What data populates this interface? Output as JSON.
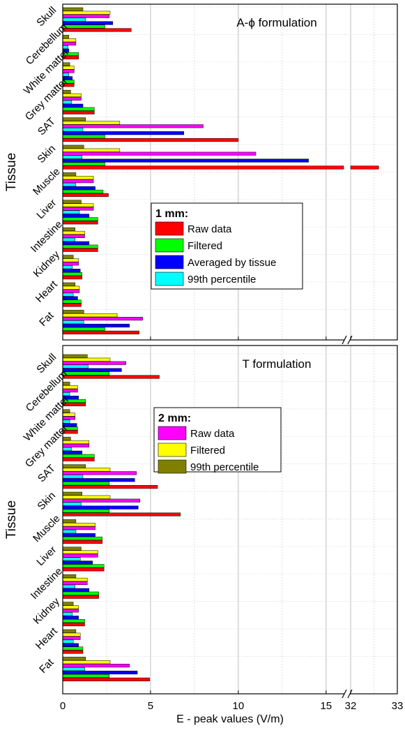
{
  "chart_data": [
    {
      "type": "bar",
      "orientation": "horizontal",
      "title": "A-ϕ formulation",
      "ylabel": "Tissue",
      "xlabel": "",
      "categories": [
        "Skull",
        "Cerebellum",
        "White matter",
        "Grey matter",
        "SAT",
        "Skin",
        "Muscle",
        "Liver",
        "Intestine",
        "Kidney",
        "Heart",
        "Fat"
      ],
      "x_axis": {
        "segments": [
          [
            0,
            16
          ],
          [
            32,
            33
          ]
        ],
        "ticks": [
          0,
          5,
          10,
          15,
          32,
          33
        ],
        "tick_labels": [
          "0",
          "5",
          "10",
          "15",
          "32",
          "33"
        ],
        "broken": true,
        "tick_labels_shown": false
      },
      "grid": true,
      "legend_title": "1 mm:",
      "legend_position": "center",
      "legend": [
        "Raw data",
        "Filtered",
        "Averaged by tissue",
        "99th percentile"
      ],
      "series": [
        {
          "name": "Raw data",
          "color": "#ff0000",
          "values": [
            3.9,
            0.9,
            0.65,
            1.8,
            10.0,
            32.6,
            2.6,
            2.0,
            2.0,
            1.1,
            1.05,
            4.35
          ]
        },
        {
          "name": "Filtered",
          "color": "#00ff00",
          "values": [
            2.4,
            0.9,
            0.65,
            1.8,
            2.4,
            2.4,
            2.3,
            2.0,
            2.0,
            1.1,
            1.05,
            2.4
          ]
        },
        {
          "name": "Averaged by tissue",
          "color": "#0000ff",
          "values": [
            2.85,
            0.35,
            0.55,
            1.15,
            6.9,
            14.0,
            1.85,
            1.5,
            1.5,
            1.0,
            0.85,
            3.8
          ]
        },
        {
          "name": "99th percentile",
          "color": "#00ffff",
          "values": [
            1.3,
            0.3,
            0.35,
            0.5,
            1.15,
            1.1,
            0.75,
            0.95,
            0.7,
            0.55,
            0.6,
            1.2
          ]
        },
        {
          "name": "Raw data",
          "color": "#ff00ff",
          "values": [
            2.65,
            0.75,
            0.65,
            1.05,
            8.0,
            11.0,
            1.75,
            1.75,
            1.25,
            0.9,
            0.95,
            4.55
          ]
        },
        {
          "name": "Filtered",
          "color": "#ffff00",
          "values": [
            2.7,
            0.75,
            0.65,
            1.05,
            3.25,
            3.25,
            1.75,
            1.75,
            1.25,
            0.9,
            0.95,
            3.1
          ]
        },
        {
          "name": "99th percentile",
          "color": "#808000",
          "values": [
            1.15,
            0.35,
            0.4,
            0.45,
            1.3,
            1.2,
            0.75,
            1.05,
            0.7,
            0.6,
            0.7,
            1.2
          ]
        }
      ]
    },
    {
      "type": "bar",
      "orientation": "horizontal",
      "title": "T formulation",
      "ylabel": "Tissue",
      "xlabel": "E - peak values (V/m)",
      "categories": [
        "Skull",
        "Cerebellum",
        "White matter",
        "Grey matter",
        "SAT",
        "Skin",
        "Muscle",
        "Liver",
        "Intestine",
        "Kidney",
        "Heart",
        "Fat"
      ],
      "x_axis": {
        "segments": [
          [
            0,
            16
          ],
          [
            32,
            33
          ]
        ],
        "ticks": [
          0,
          5,
          10,
          15,
          32,
          33
        ],
        "tick_labels": [
          "0",
          "5",
          "10",
          "15",
          "32",
          "33"
        ],
        "broken": true,
        "tick_labels_shown": true
      },
      "grid": true,
      "legend_title": "2 mm:",
      "legend_position": "upper-center",
      "legend": [
        "Raw data",
        "Filtered",
        "99th percentile"
      ],
      "series": [
        {
          "name": "Raw data",
          "color": "#ff0000",
          "values": [
            5.5,
            1.3,
            0.85,
            1.8,
            5.4,
            6.7,
            2.25,
            2.35,
            2.05,
            1.25,
            1.15,
            4.95
          ]
        },
        {
          "name": "Filtered",
          "color": "#00ff00",
          "values": [
            2.65,
            1.3,
            0.85,
            1.8,
            2.65,
            2.65,
            2.25,
            2.35,
            2.05,
            1.25,
            1.15,
            2.65
          ]
        },
        {
          "name": "Averaged by tissue",
          "color": "#0000ff",
          "values": [
            3.35,
            0.9,
            0.8,
            1.1,
            4.1,
            4.3,
            1.85,
            1.7,
            1.5,
            0.9,
            0.9,
            4.25
          ]
        },
        {
          "name": "99th percentile",
          "color": "#00ffff",
          "values": [
            1.45,
            0.4,
            0.4,
            0.5,
            1.15,
            1.05,
            0.75,
            1.0,
            0.7,
            0.55,
            0.6,
            1.25
          ]
        },
        {
          "name": "Raw data",
          "color": "#ff00ff",
          "values": [
            3.6,
            0.85,
            0.7,
            1.5,
            4.2,
            4.4,
            1.85,
            2.0,
            1.4,
            0.9,
            1.0,
            3.8
          ]
        },
        {
          "name": "Filtered",
          "color": "#ffff00",
          "values": [
            2.7,
            0.85,
            0.7,
            1.5,
            2.7,
            2.7,
            1.85,
            2.0,
            1.4,
            0.9,
            1.0,
            2.7
          ]
        },
        {
          "name": "99th percentile",
          "color": "#808000",
          "values": [
            1.4,
            0.4,
            0.4,
            0.45,
            1.3,
            1.1,
            0.75,
            1.05,
            0.75,
            0.6,
            0.75,
            1.3
          ]
        }
      ]
    }
  ]
}
